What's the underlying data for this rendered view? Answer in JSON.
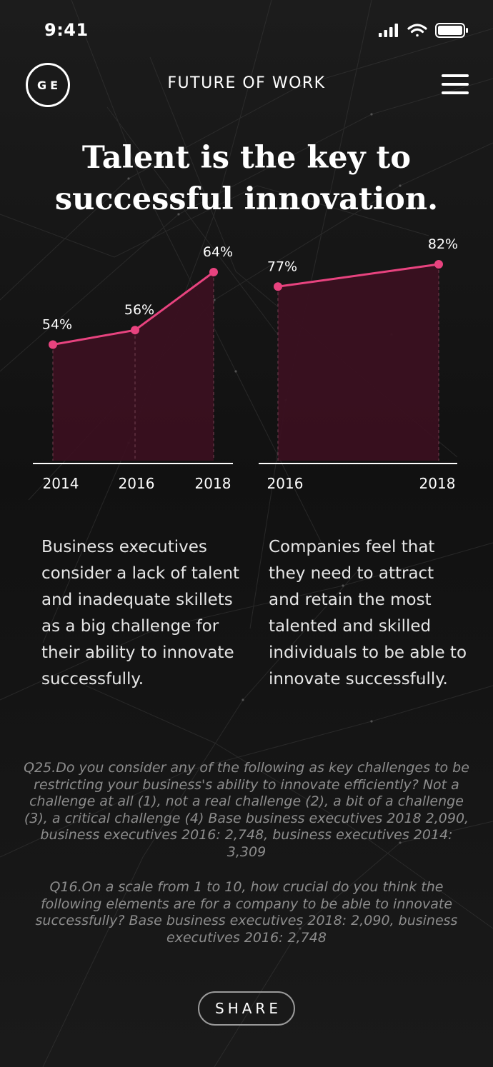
{
  "status": {
    "time": "9:41"
  },
  "nav": {
    "logo": "GE",
    "title": "FUTURE OF WORK"
  },
  "headline": "Talent is the key to successful innovation.",
  "colors": {
    "accent": "#e8437f",
    "area_fill": "#3a1020",
    "background": "#000000"
  },
  "icons": {
    "signal": "signal-bars-icon",
    "wifi": "wifi-icon",
    "battery": "battery-icon",
    "menu": "hamburger-menu-icon"
  },
  "chart_data": [
    {
      "type": "area",
      "categories": [
        "2014",
        "2016",
        "2018"
      ],
      "values": [
        54,
        56,
        64
      ],
      "data_labels": [
        "54%",
        "56%",
        "64%"
      ],
      "ylim": [
        38,
        70
      ],
      "grid": false
    },
    {
      "type": "area",
      "categories": [
        "2016",
        "2018"
      ],
      "values": [
        77,
        82
      ],
      "data_labels": [
        "77%",
        "82%"
      ],
      "ylim": [
        38,
        90
      ],
      "grid": false
    }
  ],
  "descriptions": {
    "left": "Business executives consider a lack of talent and inadequate skillets as a big challenge for their ability to innovate successfully.",
    "right": "Companies feel that they need to attract and retain the most talented and skilled individuals to be able to innovate successfully."
  },
  "footnotes": {
    "q25": "Q25.Do you consider any of the following as key challenges to be restricting your business's ability to innovate efficiently? Not a challenge at all (1), not a real challenge (2), a bit of a challenge (3), a critical challenge (4) Base business executives 2018 2,090, business executives 2016: 2,748, business executives 2014: 3,309",
    "q16": "Q16.On a scale from 1 to 10, how crucial do you think the following elements are for a company to be able to innovate successfully? Base business executives 2018: 2,090, business executives 2016: 2,748"
  },
  "share_label": "SHARE"
}
